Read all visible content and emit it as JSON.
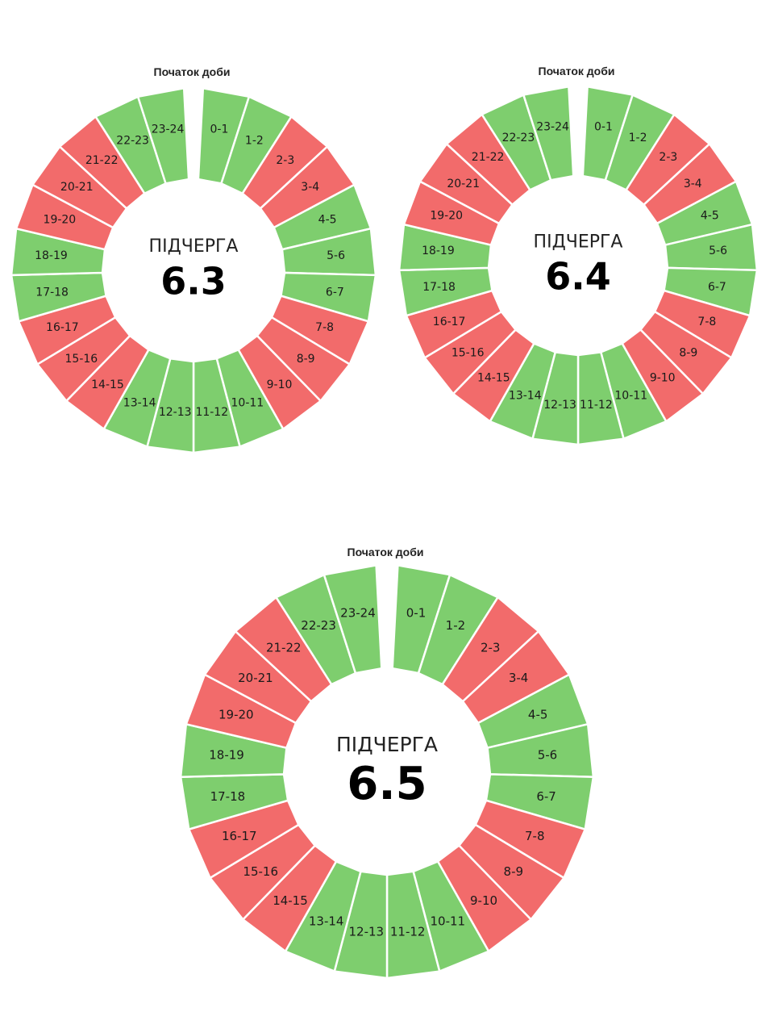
{
  "colors": {
    "on": "#7ece6e",
    "off": "#f26b6b",
    "separator": "#ffffff"
  },
  "legend_off_meaning": "",
  "chart_data": [
    {
      "type": "pie",
      "start_label": "Початок доби",
      "center_word": "ПІДЧЕРГА",
      "center_number": "6.3",
      "slots": [
        "0-1",
        "1-2",
        "2-3",
        "3-4",
        "4-5",
        "5-6",
        "6-7",
        "7-8",
        "8-9",
        "9-10",
        "10-11",
        "11-12",
        "12-13",
        "13-14",
        "14-15",
        "15-16",
        "16-17",
        "17-18",
        "18-19",
        "19-20",
        "20-21",
        "21-22",
        "22-23",
        "23-24"
      ],
      "status": [
        "on",
        "on",
        "off",
        "off",
        "on",
        "on",
        "on",
        "off",
        "off",
        "off",
        "on",
        "on",
        "on",
        "on",
        "off",
        "off",
        "off",
        "on",
        "on",
        "off",
        "off",
        "off",
        "on",
        "on"
      ]
    },
    {
      "type": "pie",
      "start_label": "Початок доби",
      "center_word": "ПІДЧЕРГА",
      "center_number": "6.4",
      "slots": [
        "0-1",
        "1-2",
        "2-3",
        "3-4",
        "4-5",
        "5-6",
        "6-7",
        "7-8",
        "8-9",
        "9-10",
        "10-11",
        "11-12",
        "12-13",
        "13-14",
        "14-15",
        "15-16",
        "16-17",
        "17-18",
        "18-19",
        "19-20",
        "20-21",
        "21-22",
        "22-23",
        "23-24"
      ],
      "status": [
        "on",
        "on",
        "off",
        "off",
        "on",
        "on",
        "on",
        "off",
        "off",
        "off",
        "on",
        "on",
        "on",
        "on",
        "off",
        "off",
        "off",
        "on",
        "on",
        "off",
        "off",
        "off",
        "on",
        "on"
      ]
    },
    {
      "type": "pie",
      "start_label": "Початок доби",
      "center_word": "ПІДЧЕРГА",
      "center_number": "6.5",
      "slots": [
        "0-1",
        "1-2",
        "2-3",
        "3-4",
        "4-5",
        "5-6",
        "6-7",
        "7-8",
        "8-9",
        "9-10",
        "10-11",
        "11-12",
        "12-13",
        "13-14",
        "14-15",
        "15-16",
        "16-17",
        "17-18",
        "18-19",
        "19-20",
        "20-21",
        "21-22",
        "22-23",
        "23-24"
      ],
      "status": [
        "on",
        "on",
        "off",
        "off",
        "on",
        "on",
        "on",
        "off",
        "off",
        "off",
        "on",
        "on",
        "on",
        "on",
        "off",
        "off",
        "off",
        "on",
        "on",
        "off",
        "off",
        "off",
        "on",
        "on"
      ]
    }
  ]
}
